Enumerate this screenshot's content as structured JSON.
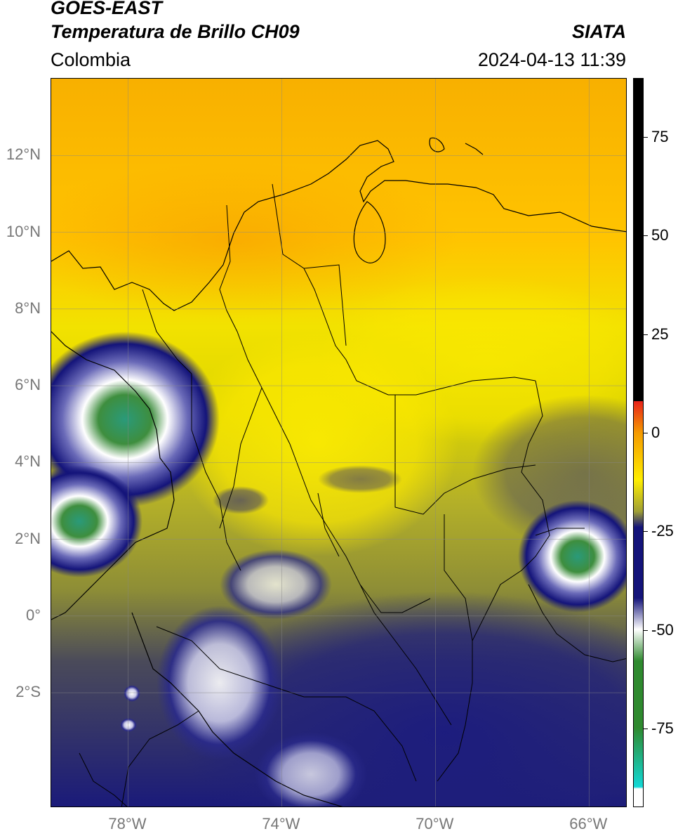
{
  "header": {
    "satellite": "GOES-EAST",
    "product": "Temperatura de Brillo CH09",
    "brand": "SIATA",
    "region": "Colombia",
    "timestamp": "2024-04-13 11:39"
  },
  "map": {
    "lon_range": [
      -80,
      -65
    ],
    "lat_range": [
      -5,
      14
    ],
    "lat_ticks": [
      {
        "value": 12,
        "label": "12°N"
      },
      {
        "value": 10,
        "label": "10°N"
      },
      {
        "value": 8,
        "label": "8°N"
      },
      {
        "value": 6,
        "label": "6°N"
      },
      {
        "value": 4,
        "label": "4°N"
      },
      {
        "value": 2,
        "label": "2°N"
      },
      {
        "value": 0,
        "label": "0°"
      },
      {
        "value": -2,
        "label": "2°S"
      }
    ],
    "lon_ticks": [
      {
        "value": -78,
        "label": "78°W"
      },
      {
        "value": -74,
        "label": "74°W"
      },
      {
        "value": -70,
        "label": "70°W"
      },
      {
        "value": -66,
        "label": "66°W"
      }
    ],
    "grid": true
  },
  "colorbar": {
    "range": [
      -95,
      90
    ],
    "ticks": [
      {
        "value": 75,
        "label": "75"
      },
      {
        "value": 50,
        "label": "50"
      },
      {
        "value": 25,
        "label": "25"
      },
      {
        "value": 0,
        "label": "0"
      },
      {
        "value": -25,
        "label": "-25"
      },
      {
        "value": -50,
        "label": "-50"
      },
      {
        "value": -75,
        "label": "-75"
      }
    ],
    "colors": {
      "black_above": 8,
      "red": "#e8231a",
      "orange": "#f59a00",
      "yellow": "#ffee00",
      "olive": "#9f9f34",
      "navy": "#14147a",
      "white": "#ffffff",
      "green": "#2f8a2f",
      "cyan": "#12d8d6"
    }
  }
}
